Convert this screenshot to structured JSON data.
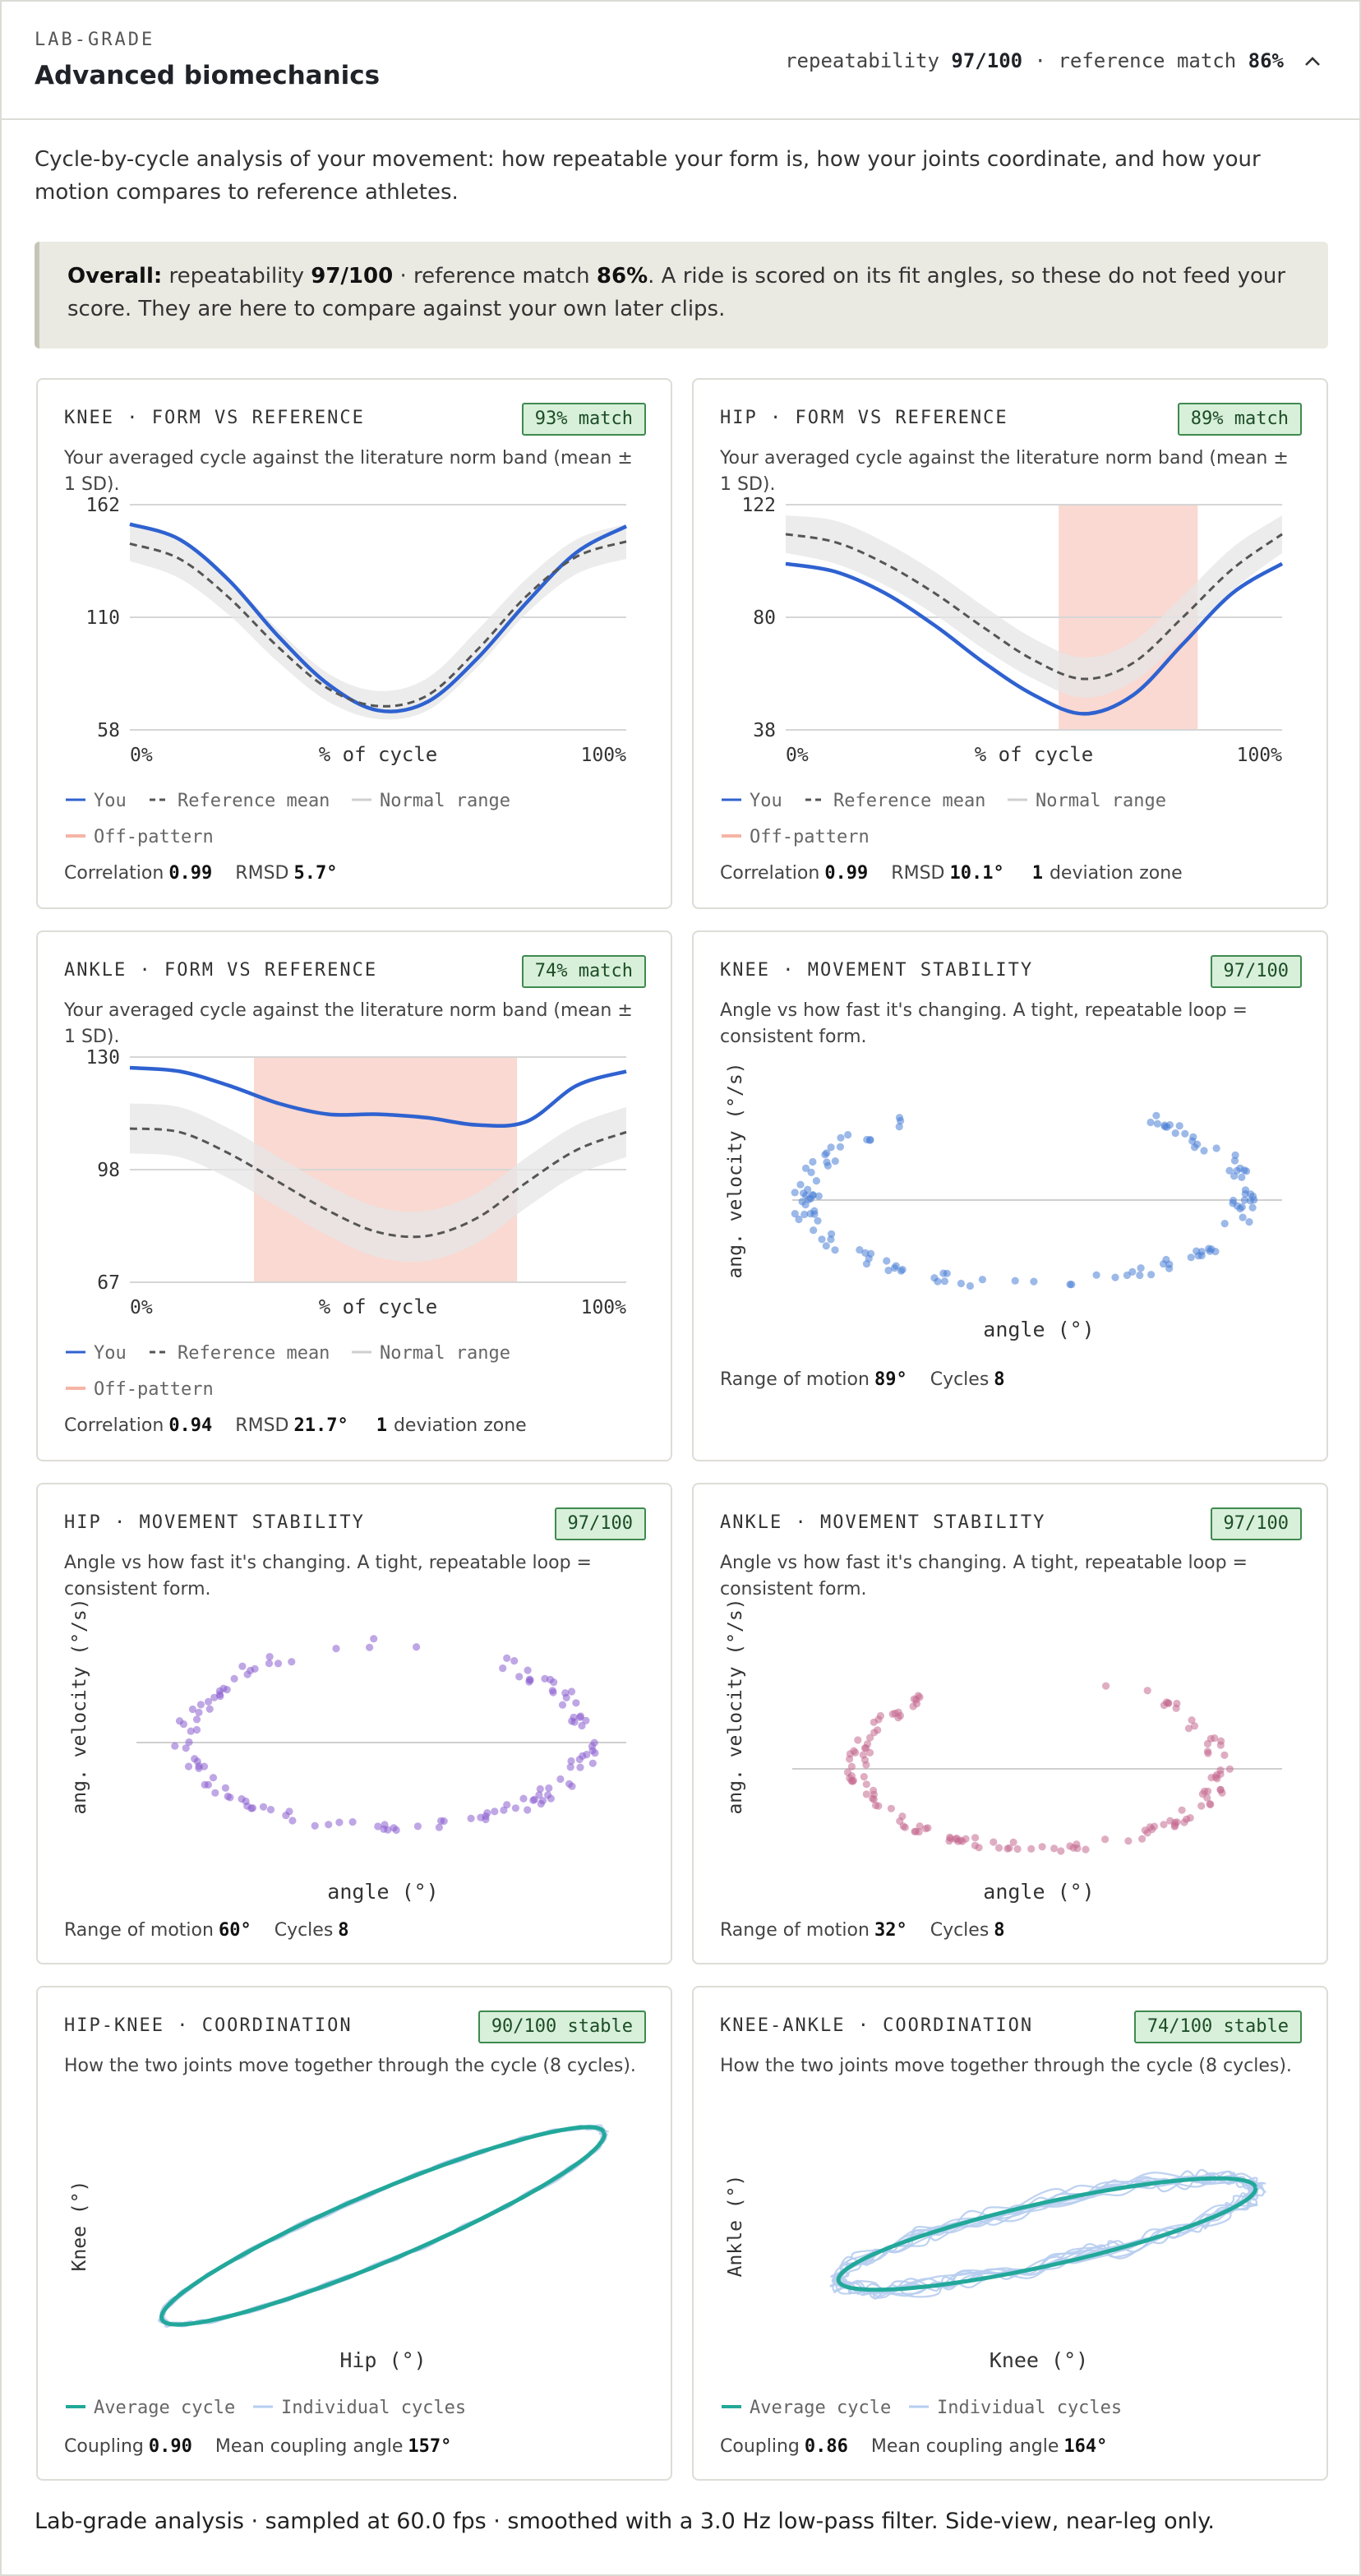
{
  "header": {
    "eyebrow": "LAB-GRADE",
    "title": "Advanced biomechanics",
    "summary_prefix": "repeatability",
    "repeatability": "97/100",
    "summary_mid": "· reference match",
    "reference_match": "86%",
    "collapse_icon": "chevron-up-icon"
  },
  "intro": "Cycle-by-cycle analysis of your movement: how repeatable your form is, how your joints coordinate, and how your motion compares to reference athletes.",
  "callout": {
    "lead": "Overall:",
    "t1": "repeatability",
    "repeatability": "97/100",
    "t2": "· reference match",
    "match": "86%",
    "t3": ". A ride is scored on its fit angles, so these do not feed your score. They are here to compare against your own later clips."
  },
  "legend": {
    "you": "You",
    "ref": "Reference mean",
    "range": "Normal range",
    "off": "Off-pattern",
    "avg": "Average cycle",
    "ind": "Individual cycles"
  },
  "colors": {
    "you": "#2f62d0",
    "ref": "#555555",
    "band": "#e6e6e6",
    "off": "#f9d9d1",
    "teal": "#22a89a",
    "faint": "#b7cdf0",
    "knee_dots": "#4a7fd6",
    "hip_dots": "#8a5fd0",
    "ankle_dots": "#c46a8f",
    "badge_bg": "#d8f0da"
  },
  "labels": {
    "pct_cycle": "% of cycle",
    "x0": "0%",
    "x100": "100%",
    "ang_vel": "ang. velocity (°/s)",
    "angle": "angle (°)",
    "sub_form": "Your averaged cycle against the literature norm band (mean ± 1 SD).",
    "sub_stab": "Angle vs how fast it's changing. A tight, repeatable loop = consistent form.",
    "sub_coord": "How the two joints move together through the cycle (8 cycles).",
    "correlation": "Correlation",
    "rmsd": "RMSD",
    "deviation_zone": "deviation zone",
    "rom": "Range of motion",
    "cycles": "Cycles",
    "coupling": "Coupling",
    "coupling_angle": "Mean coupling angle"
  },
  "cards": {
    "knee_form": {
      "title": "KNEE · FORM VS REFERENCE",
      "badge": "93% match",
      "correlation": "0.99",
      "rmsd": "5.7°"
    },
    "hip_form": {
      "title": "HIP · FORM VS REFERENCE",
      "badge": "89% match",
      "correlation": "0.99",
      "rmsd": "10.1°",
      "zones": "1"
    },
    "ankle_form": {
      "title": "ANKLE · FORM VS REFERENCE",
      "badge": "74% match",
      "correlation": "0.94",
      "rmsd": "21.7°",
      "zones": "1"
    },
    "knee_stab": {
      "title": "KNEE · MOVEMENT STABILITY",
      "badge": "97/100",
      "rom": "89°",
      "cycles": "8"
    },
    "hip_stab": {
      "title": "HIP · MOVEMENT STABILITY",
      "badge": "97/100",
      "rom": "60°",
      "cycles": "8"
    },
    "ankle_stab": {
      "title": "ANKLE · MOVEMENT STABILITY",
      "badge": "97/100",
      "rom": "32°",
      "cycles": "8"
    },
    "hip_knee": {
      "title": "HIP-KNEE · COORDINATION",
      "badge": "90/100 stable",
      "xlabel": "Hip (°)",
      "ylabel": "Knee (°)",
      "coupling": "0.90",
      "angle": "157°"
    },
    "knee_ankle": {
      "title": "KNEE-ANKLE · COORDINATION",
      "badge": "74/100 stable",
      "xlabel": "Knee (°)",
      "ylabel": "Ankle (°)",
      "coupling": "0.86",
      "angle": "164°"
    }
  },
  "footer": "Lab-grade analysis · sampled at 60.0 fps · smoothed with a 3.0 Hz low-pass filter. Side-view, near-leg only.",
  "chart_data": [
    {
      "id": "knee_form",
      "type": "line",
      "ylim": [
        58,
        162
      ],
      "yticks": [
        "58",
        "110",
        "162"
      ],
      "x": [
        0,
        10,
        20,
        30,
        40,
        50,
        60,
        70,
        80,
        90,
        100
      ],
      "series": [
        {
          "name": "You",
          "values": [
            153,
            146,
            127,
            101,
            79,
            67,
            71,
            91,
            117,
            140,
            152
          ]
        },
        {
          "name": "Reference mean",
          "values": [
            144,
            137,
            119,
            96,
            77,
            69,
            74,
            95,
            120,
            138,
            145
          ]
        }
      ],
      "band": {
        "lower": [
          136,
          128,
          111,
          89,
          71,
          63,
          67,
          87,
          112,
          130,
          137
        ],
        "upper": [
          152,
          146,
          128,
          104,
          84,
          76,
          82,
          104,
          128,
          146,
          153
        ]
      },
      "off_pattern": []
    },
    {
      "id": "hip_form",
      "type": "line",
      "ylim": [
        38,
        122
      ],
      "yticks": [
        "38",
        "80",
        "122"
      ],
      "x": [
        0,
        10,
        20,
        30,
        40,
        50,
        60,
        70,
        80,
        90,
        100
      ],
      "series": [
        {
          "name": "You",
          "values": [
            100,
            97,
            89,
            77,
            63,
            51,
            44,
            51,
            70,
            89,
            100
          ]
        },
        {
          "name": "Reference mean",
          "values": [
            111,
            108,
            100,
            89,
            76,
            64,
            57,
            63,
            80,
            98,
            111
          ]
        }
      ],
      "band": {
        "lower": [
          104,
          100,
          92,
          81,
          68,
          57,
          50,
          56,
          72,
          90,
          104
        ],
        "upper": [
          118,
          116,
          108,
          97,
          84,
          72,
          65,
          71,
          88,
          106,
          118
        ]
      },
      "off_pattern": [
        [
          55,
          83
        ]
      ]
    },
    {
      "id": "ankle_form",
      "type": "line",
      "ylim": [
        67,
        130
      ],
      "yticks": [
        "67",
        "98",
        "130"
      ],
      "x": [
        0,
        10,
        20,
        30,
        40,
        50,
        60,
        70,
        80,
        90,
        100
      ],
      "series": [
        {
          "name": "You",
          "values": [
            127,
            126,
            122,
            117,
            114,
            114,
            113,
            111,
            112,
            122,
            126
          ]
        },
        {
          "name": "Reference mean",
          "values": [
            110,
            109,
            103,
            95,
            87,
            81,
            80,
            85,
            95,
            104,
            109
          ]
        }
      ],
      "band": {
        "lower": [
          103,
          102,
          96,
          88,
          80,
          74,
          73,
          78,
          88,
          97,
          102
        ],
        "upper": [
          117,
          116,
          110,
          102,
          94,
          88,
          87,
          92,
          102,
          111,
          116
        ]
      },
      "off_pattern": [
        [
          25,
          78
        ]
      ]
    },
    {
      "id": "knee_stab",
      "type": "scatter",
      "pattern": "loop",
      "rom": 89,
      "cycles": 8
    },
    {
      "id": "hip_stab",
      "type": "scatter",
      "pattern": "loop",
      "rom": 60,
      "cycles": 8
    },
    {
      "id": "ankle_stab",
      "type": "scatter",
      "pattern": "cloud",
      "rom": 32,
      "cycles": 8
    },
    {
      "id": "hip_knee",
      "type": "line",
      "pattern": "coupling-loop",
      "coupling": 0.9,
      "cycles": 8
    },
    {
      "id": "knee_ankle",
      "type": "line",
      "pattern": "coupling-loop",
      "coupling": 0.86,
      "cycles": 8
    }
  ]
}
